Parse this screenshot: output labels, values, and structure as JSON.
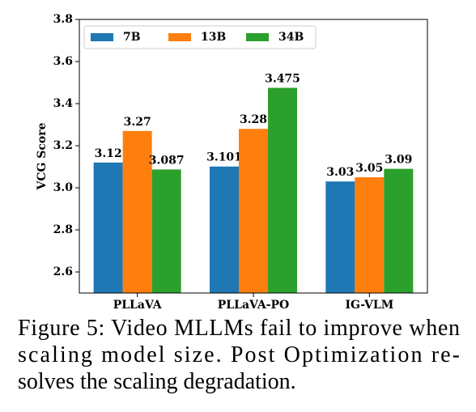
{
  "chart_data": {
    "type": "bar",
    "ylabel": "VCG Score",
    "categories": [
      "PLLaVA",
      "PLLaVA-PO",
      "IG-VLM"
    ],
    "series": [
      {
        "name": "7B",
        "color": "#1f77b4",
        "values": [
          3.12,
          3.101,
          3.03
        ]
      },
      {
        "name": "13B",
        "color": "#ff7f0e",
        "values": [
          3.27,
          3.28,
          3.05
        ]
      },
      {
        "name": "34B",
        "color": "#2ca02c",
        "values": [
          3.087,
          3.475,
          3.09
        ]
      }
    ],
    "ylim": [
      2.5,
      3.8
    ],
    "yticks": [
      2.6,
      2.8,
      {
        "value": 3,
        "label": "3.0"
      },
      3.2,
      3.4,
      3.6,
      3.8
    ],
    "legend": "upper left"
  },
  "caption": [
    "Figure 5: Video MLLMs fail to improve when",
    "scaling model size.  Post Optimization re-",
    "solves the scaling degradation."
  ]
}
